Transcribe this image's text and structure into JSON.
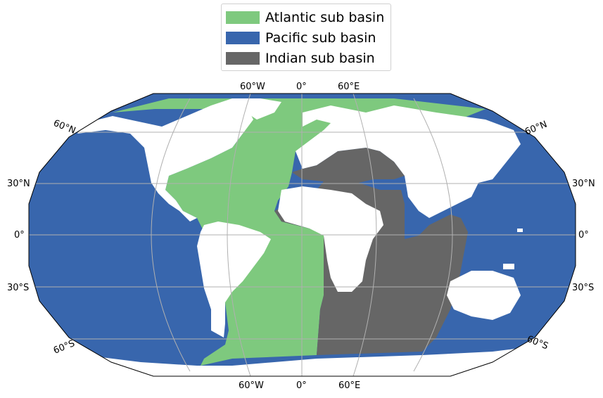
{
  "legend": {
    "items": [
      {
        "label": "Atlantic sub basin",
        "color": "#7ec97e"
      },
      {
        "label": "Pacific sub basin",
        "color": "#3866ad"
      },
      {
        "label": "Indian sub basin",
        "color": "#666666"
      }
    ]
  },
  "map": {
    "projection": "Robinson",
    "gridlines": true,
    "gridline_color": "#b0b0b0",
    "land_color": "#ffffff",
    "top_lon_labels": [
      "60°W",
      "0°",
      "60°E"
    ],
    "bottom_lon_labels": [
      "60°W",
      "0°",
      "60°E"
    ],
    "left_lat_labels": [
      "60°N",
      "30°N",
      "0°",
      "30°S",
      "60°S"
    ],
    "right_lat_labels": [
      "60°N",
      "30°N",
      "0°",
      "30°S",
      "60°S"
    ]
  }
}
